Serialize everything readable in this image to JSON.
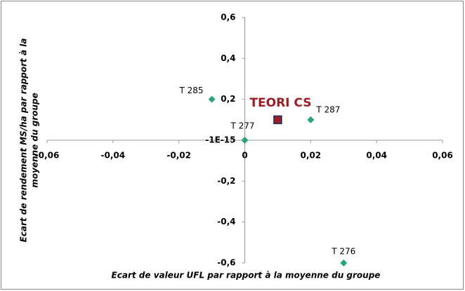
{
  "chart_data": {
    "type": "scatter",
    "x_label": "Ecart de valeur UFL par rapport à la moyenne du groupe",
    "y_label": [
      "Ecart de rendement MS/ha par rapport à la",
      "moyenne du groupe"
    ],
    "labels": [
      "T 285",
      "T 287",
      "T 277",
      "T 276",
      "TEORI CS"
    ],
    "x": [
      -0.01,
      0.02,
      0,
      0.03,
      0.01
    ],
    "y": [
      0.2,
      0.1,
      0,
      -0.6,
      0.1
    ],
    "colors": [
      "#2ca37a",
      "#2ca37a",
      "#2ca37a",
      "#2ca37a",
      "#9b1c24"
    ],
    "markers": [
      "diamond",
      "diamond",
      "diamond",
      "diamond",
      "square"
    ],
    "xlim": [
      -0.06,
      0.06
    ],
    "ylim": [
      -0.6,
      0.6
    ],
    "xticks": [
      {
        "value": -0.06,
        "label": "-0,06"
      },
      {
        "value": -0.04,
        "label": "-0,04"
      },
      {
        "value": -0.02,
        "label": "-0,02"
      },
      0,
      {
        "value": 0.02,
        "label": "0,02"
      },
      {
        "value": 0.04,
        "label": "0,04"
      },
      {
        "value": 0.06,
        "label": "0,06"
      }
    ],
    "yticks": [
      {
        "value": 0.6,
        "label": "0,6"
      },
      {
        "value": 0.4,
        "label": "0,4"
      },
      {
        "value": 0.2,
        "label": "0,2"
      },
      {
        "value": -1e-15,
        "label": "-1E-15"
      },
      {
        "value": -0.2,
        "label": "-0,2"
      },
      {
        "value": -0.4,
        "label": "-0,4"
      },
      {
        "value": -0.6,
        "label": "-0,6"
      }
    ],
    "grid": false
  }
}
